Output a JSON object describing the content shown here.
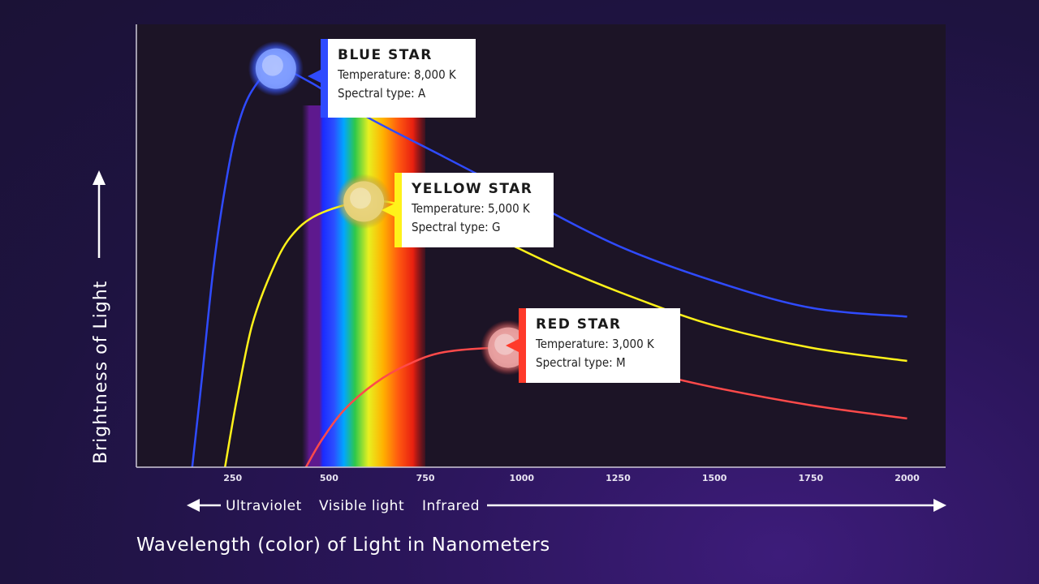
{
  "chart_data": {
    "type": "line",
    "xlabel": "Wavelength (color) of Light in Nanometers",
    "ylabel": "Brightness of Light",
    "xlim": [
      0,
      2100
    ],
    "ylim": [
      0,
      1.0
    ],
    "x_ticks": [
      250,
      500,
      750,
      1000,
      1250,
      1500,
      1750,
      2000
    ],
    "grid": false,
    "regions": [
      {
        "label": "Ultraviolet",
        "x_range": [
          0,
          400
        ]
      },
      {
        "label": "Visible light",
        "x_range": [
          400,
          700
        ]
      },
      {
        "label": "Infrared",
        "x_range": [
          700,
          2100
        ]
      }
    ],
    "series": [
      {
        "name": "BLUE STAR",
        "temperature": "Temperature: 8,000 K",
        "spectral_type": "Spectral type: A",
        "color": "#2f4bff",
        "marker_color": "#7f9cff",
        "peak": {
          "x": 362,
          "y": 0.9
        },
        "x": [
          145,
          170,
          200,
          230,
          260,
          300,
          362,
          450,
          600,
          800,
          1000,
          1250,
          1500,
          1750,
          2000
        ],
        "y": [
          0.0,
          0.2,
          0.45,
          0.63,
          0.76,
          0.85,
          0.9,
          0.87,
          0.79,
          0.7,
          0.61,
          0.5,
          0.42,
          0.36,
          0.34
        ]
      },
      {
        "name": "YELLOW STAR",
        "temperature": "Temperature: 5,000 K",
        "spectral_type": "Spectral type: G",
        "color": "#fff21a",
        "marker_color": "#e8d27a",
        "peak": {
          "x": 590,
          "y": 0.6
        },
        "x": [
          230,
          260,
          300,
          350,
          400,
          470,
          590,
          700,
          900,
          1100,
          1300,
          1500,
          1750,
          2000
        ],
        "y": [
          0.0,
          0.15,
          0.32,
          0.44,
          0.52,
          0.57,
          0.6,
          0.59,
          0.53,
          0.45,
          0.38,
          0.32,
          0.27,
          0.24
        ]
      },
      {
        "name": "RED STAR",
        "temperature": "Temperature: 3,000 K",
        "spectral_type": "Spectral type: M",
        "color": "#ff4a4a",
        "marker_color": "#e8a0a0",
        "peak": {
          "x": 965,
          "y": 0.27
        },
        "x": [
          440,
          480,
          540,
          620,
          700,
          800,
          965,
          1100,
          1300,
          1500,
          1750,
          2000
        ],
        "y": [
          0.0,
          0.06,
          0.13,
          0.19,
          0.23,
          0.26,
          0.27,
          0.26,
          0.22,
          0.18,
          0.14,
          0.11
        ]
      }
    ],
    "annotations": [
      {
        "text": "Ultraviolet"
      },
      {
        "text": "Visible light"
      },
      {
        "text": "Infrared"
      }
    ]
  }
}
